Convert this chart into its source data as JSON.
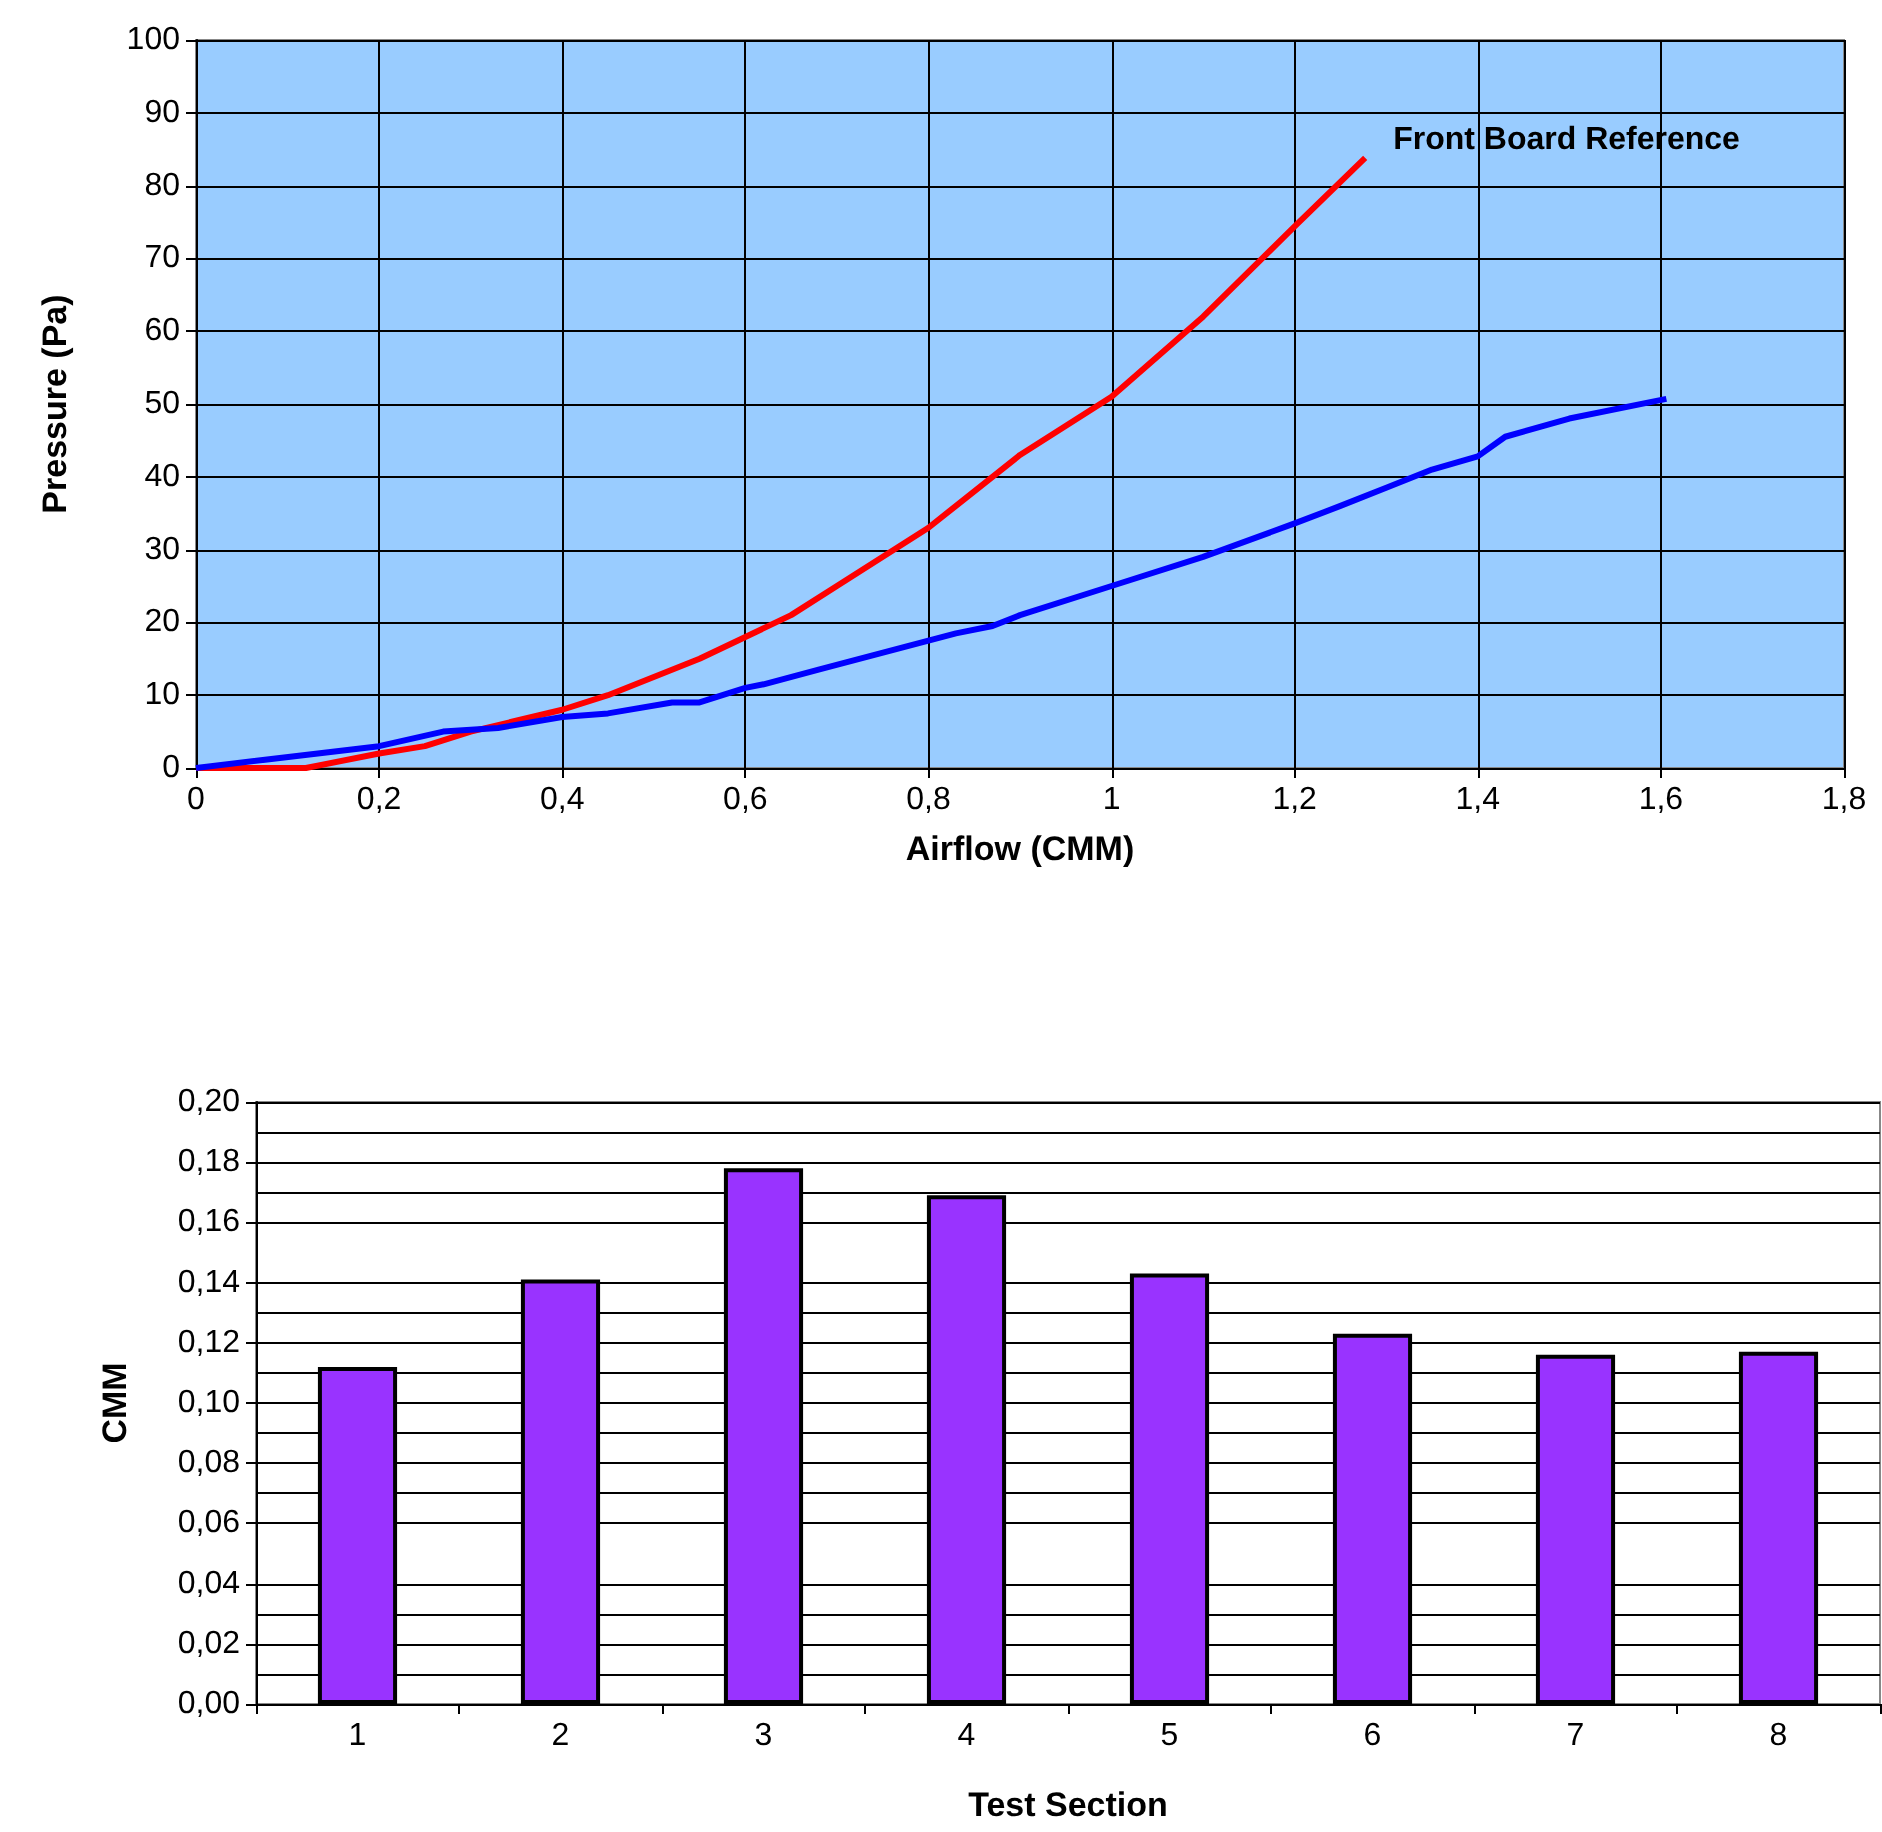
{
  "chart_data": [
    {
      "type": "line",
      "xlabel": "Airflow (CMM)",
      "ylabel": "Pressure (Pa)",
      "xlim": [
        0,
        1.8
      ],
      "xticks": [
        0,
        {
          "value": 0.2,
          "label": "0,2"
        },
        {
          "value": 0.4,
          "label": "0,4"
        },
        {
          "value": 0.6,
          "label": "0,6"
        },
        {
          "value": 0.8,
          "label": "0,8"
        },
        1,
        {
          "value": 1.2,
          "label": "1,2"
        },
        {
          "value": 1.4,
          "label": "1,4"
        },
        {
          "value": 1.6,
          "label": "1,6"
        },
        {
          "value": 1.8,
          "label": "1,8"
        }
      ],
      "ylim": [
        0,
        100
      ],
      "yticks": [
        0,
        10,
        20,
        30,
        40,
        50,
        60,
        70,
        80,
        90,
        100
      ],
      "grid": true,
      "series": [
        {
          "name": "Front Board Reference",
          "color": "#ff0000",
          "x": [
            0,
            0.12,
            0.2,
            0.25,
            0.3,
            0.4,
            0.45,
            0.55,
            0.6,
            0.65,
            0.7,
            0.8,
            0.9,
            1.0,
            1.1,
            1.2,
            1.277
          ],
          "values": [
            0,
            0,
            2,
            3,
            5,
            8,
            10,
            15,
            18,
            21,
            25,
            33,
            43,
            51,
            62,
            74.4,
            83.8
          ]
        },
        {
          "color": "#0000ff",
          "x": [
            0,
            0.2,
            0.27,
            0.33,
            0.4,
            0.45,
            0.52,
            0.55,
            0.6,
            0.62,
            0.68,
            0.8,
            0.83,
            0.87,
            0.9,
            1.0,
            1.1,
            1.2,
            1.25,
            1.3,
            1.35,
            1.4,
            1.43,
            1.5,
            1.606
          ],
          "values": [
            0,
            3,
            5,
            5.5,
            7,
            7.5,
            9,
            9,
            11,
            11.5,
            13.5,
            17.5,
            18.5,
            19.5,
            21,
            25,
            29,
            33.6,
            36,
            38.5,
            41,
            42.8,
            45.5,
            48,
            50.7
          ]
        }
      ]
    },
    {
      "type": "bar",
      "xlabel": "Test Section",
      "ylabel": "CMM",
      "categories": [
        "1",
        "2",
        "3",
        "4",
        "5",
        "6",
        "7",
        "8"
      ],
      "values": [
        0.112,
        0.141,
        0.178,
        0.169,
        0.143,
        0.123,
        0.116,
        0.117
      ],
      "color": "#9933ff",
      "ylim": [
        0,
        0.2
      ],
      "yticks": [
        {
          "value": 0,
          "label": "0,00"
        },
        {
          "value": 0.02,
          "label": "0,02"
        },
        {
          "value": 0.04,
          "label": "0,04"
        },
        {
          "value": 0.06,
          "label": "0,06"
        },
        {
          "value": 0.08,
          "label": "0,08"
        },
        {
          "value": 0.1,
          "label": "0,10"
        },
        {
          "value": 0.12,
          "label": "0,12"
        },
        {
          "value": 0.14,
          "label": "0,14"
        },
        {
          "value": 0.16,
          "label": "0,16"
        },
        {
          "value": 0.18,
          "label": "0,18"
        },
        {
          "value": 0.2,
          "label": "0,20"
        }
      ],
      "grid": true
    }
  ]
}
